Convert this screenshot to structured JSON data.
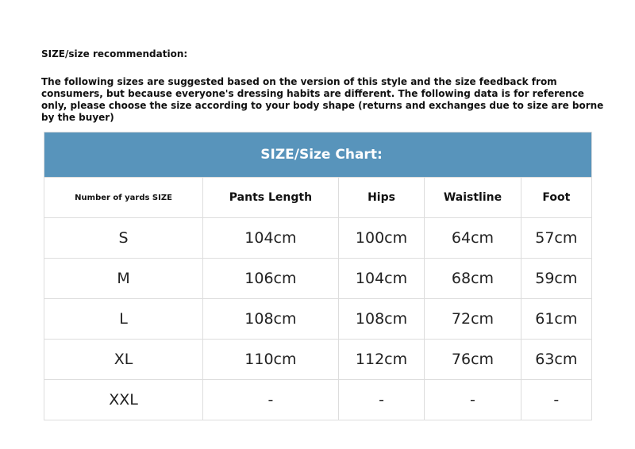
{
  "title": "SIZE/size recommendation:",
  "intro": "The following sizes are suggested based on the version of this style and the size feedback from consumers, but because everyone's dressing habits are different. The following data is for reference only, please choose the size according to your body shape (returns and exchanges due to size are borne by the buyer)",
  "chart": {
    "banner": "SIZE/Size Chart:",
    "banner_color": "#5894bb",
    "headers": [
      "Number of yards SIZE",
      "Pants Length",
      "Hips",
      "Waistline",
      "Foot"
    ],
    "rows": [
      [
        "S",
        "104cm",
        "100cm",
        "64cm",
        "57cm"
      ],
      [
        "M",
        "106cm",
        "104cm",
        "68cm",
        "59cm"
      ],
      [
        "L",
        "108cm",
        "108cm",
        "72cm",
        "61cm"
      ],
      [
        "XL",
        "110cm",
        "112cm",
        "76cm",
        "63cm"
      ],
      [
        "XXL",
        "-",
        "-",
        "-",
        "-"
      ]
    ]
  }
}
